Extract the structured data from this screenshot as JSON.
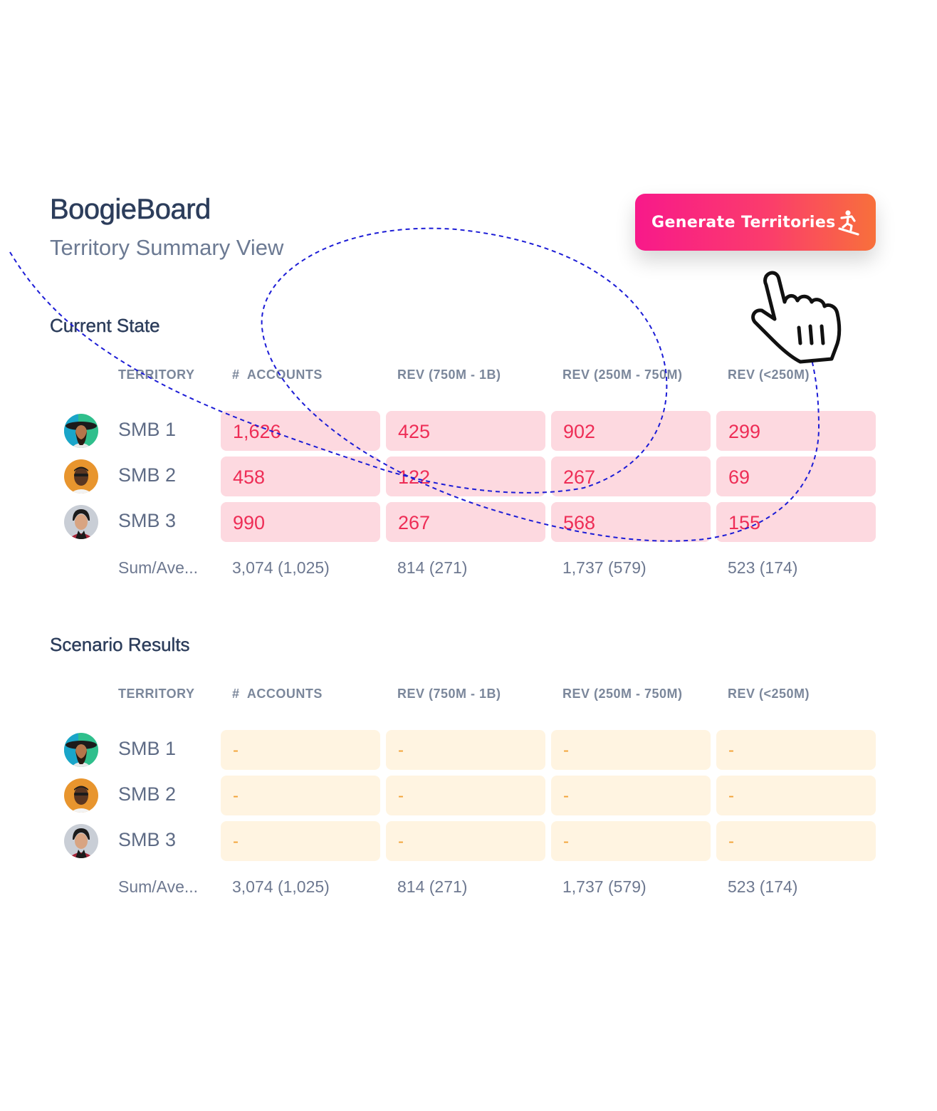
{
  "header": {
    "app_title": "BoogieBoard",
    "subtitle": "Territory Summary View",
    "generate_button": {
      "label": "Generate Territories",
      "icon": "snowboarder-icon"
    }
  },
  "columns": [
    "TERRITORY",
    "#  ACCOUNTS",
    "REV (750M - 1B)",
    "REV (250M - 750M)",
    "REV (<250M)"
  ],
  "current_state": {
    "title": "Current State",
    "rows": [
      {
        "territory": "SMB 1",
        "avatar": "avatar-smb1",
        "values": [
          "1,626",
          "425",
          "902",
          "299"
        ]
      },
      {
        "territory": "SMB 2",
        "avatar": "avatar-smb2",
        "values": [
          "458",
          "122",
          "267",
          "69"
        ]
      },
      {
        "territory": "SMB 3",
        "avatar": "avatar-smb3",
        "values": [
          "990",
          "267",
          "568",
          "155"
        ]
      }
    ],
    "summary": {
      "label": "Sum/Ave...",
      "values": [
        "3,074 (1,025)",
        "814 (271)",
        "1,737 (579)",
        "523 (174)"
      ]
    }
  },
  "scenario_results": {
    "title": "Scenario Results",
    "rows": [
      {
        "territory": "SMB 1",
        "avatar": "avatar-smb1",
        "values": [
          "-",
          "-",
          "-",
          "-"
        ]
      },
      {
        "territory": "SMB 2",
        "avatar": "avatar-smb2",
        "values": [
          "-",
          "-",
          "-",
          "-"
        ]
      },
      {
        "territory": "SMB 3",
        "avatar": "avatar-smb3",
        "values": [
          "-",
          "-",
          "-",
          "-"
        ]
      }
    ],
    "summary": {
      "label": "Sum/Ave...",
      "values": [
        "3,074 (1,025)",
        "814 (271)",
        "1,737 (579)",
        "523 (174)"
      ]
    }
  },
  "colors": {
    "accent_gradient_start": "#f8198a",
    "accent_gradient_end": "#f8703b",
    "current_cell_bg": "#fdd9e0",
    "current_cell_text": "#ee2d56",
    "scenario_cell_bg": "#fff4e1",
    "scenario_cell_text": "#f2a134",
    "dashed_path": "#1c1cd6"
  },
  "decorations": {
    "cursor": "pointing-hand-icon",
    "path": "dashed-loop-path"
  }
}
